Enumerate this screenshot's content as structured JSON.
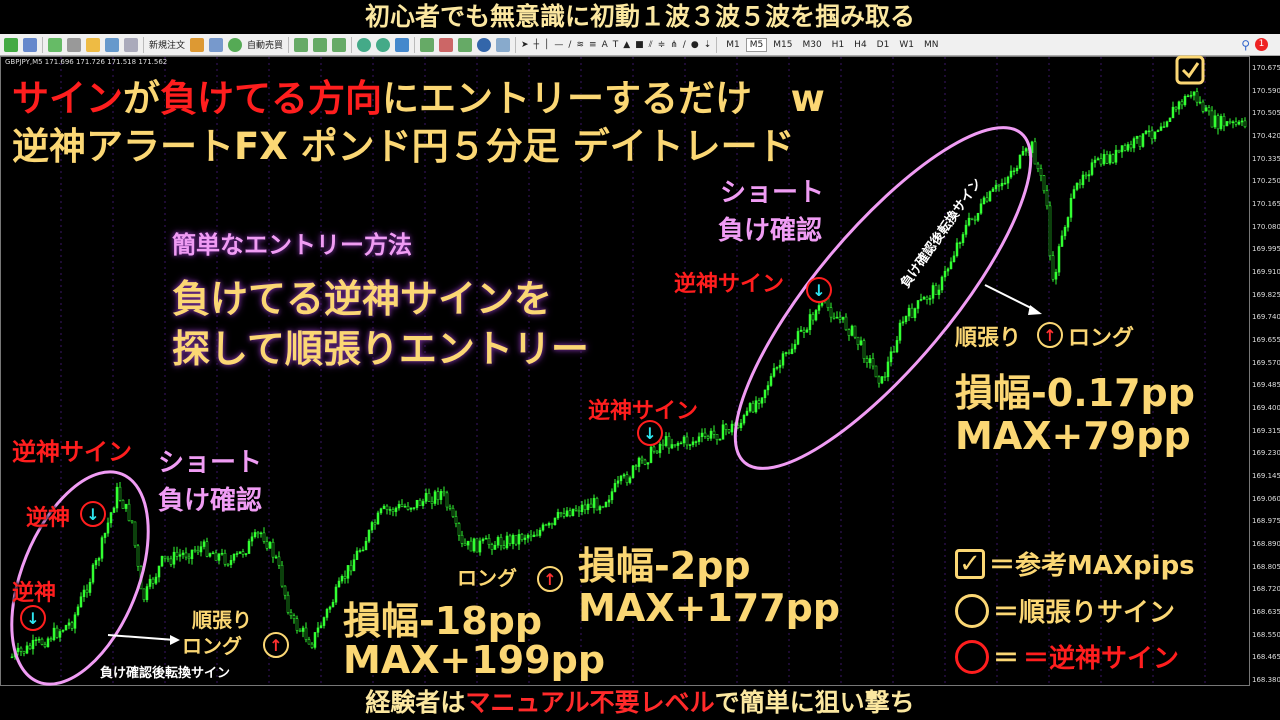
{
  "top_banner": "初心者でも無意識に初動１波３波５波を掴み取る",
  "bottom_banner": {
    "a": "経験者は",
    "b": "マニュアル不要レベル",
    "c": "で簡単に狙い撃ち"
  },
  "toolbar": {
    "new_order": "新規注文",
    "auto_trade": "自動売買",
    "timeframes": [
      "M1",
      "M5",
      "M15",
      "M30",
      "H1",
      "H4",
      "D1",
      "W1",
      "MN"
    ],
    "active_timeframe": "M5",
    "notification_count": "1"
  },
  "chart": {
    "info": "GBPJPY,M5  171.696 171.726 171.518 171.562",
    "price_labels": [
      "170.675",
      "170.590",
      "170.505",
      "170.420",
      "170.335",
      "170.250",
      "170.165",
      "170.080",
      "169.995",
      "169.910",
      "169.825",
      "169.740",
      "169.655",
      "169.570",
      "169.485",
      "169.400",
      "169.315",
      "169.230",
      "169.145",
      "169.060",
      "168.975",
      "168.890",
      "168.805",
      "168.720",
      "168.635",
      "168.550",
      "168.465",
      "168.380"
    ],
    "candle_up_color": "#33ff33",
    "background": "#000000"
  },
  "headline": {
    "l1a": "サイン",
    "l1b": "が",
    "l1c": "負けてる方向",
    "l1d": "にエントリーするだけ",
    "emoji": "😇",
    "l1e": "w",
    "l2": "逆神アラートFX ポンド円５分足 デイトレード"
  },
  "method": {
    "title": "簡単なエントリー方法",
    "line1": "負けてる逆神サインを",
    "line2": "探して順張りエントリー"
  },
  "annotations": {
    "gyakushin_sign": "逆神サイン",
    "gyakushin": "逆神",
    "short_loss": "ショート",
    "short_loss2": "負け確認",
    "juncho": "順張り",
    "long": "ロング",
    "juncho_long": "順張り",
    "conversion_sign": "負け確認後転換サイン",
    "loss1": "損幅-18pp",
    "max1": "MAX+199pp",
    "loss2": "損幅-2pp",
    "max2": "MAX+177pp",
    "loss3": "損幅-0.17pp",
    "max3": "MAX+79pp"
  },
  "legend": {
    "check": "＝参考MAXpips",
    "yellow": "＝順張りサイン",
    "red": "＝逆神サイン"
  },
  "colors": {
    "yellow": "#fbd774",
    "red": "#ff1e1e",
    "pink": "#f09cf4",
    "cyan_arrow": "#2ee6f0"
  }
}
